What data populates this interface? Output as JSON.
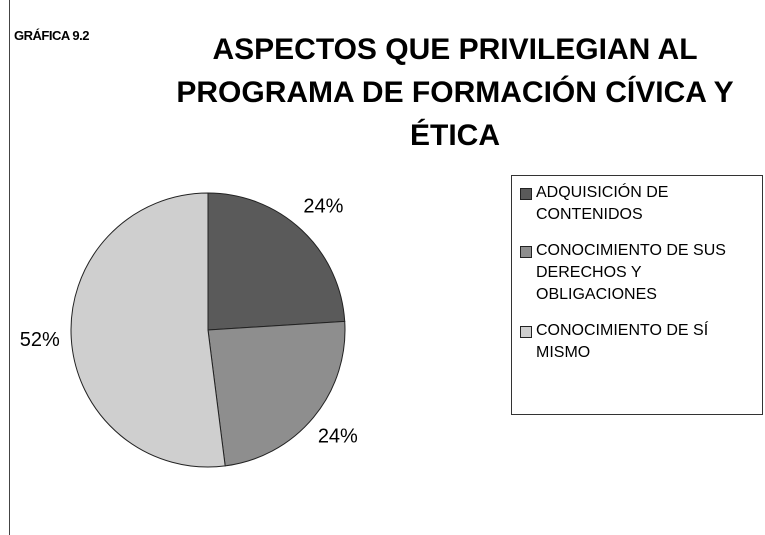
{
  "chart_data": {
    "type": "pie",
    "label": "GRÁFICA 9.2",
    "title": "ASPECTOS QUE PRIVILEGIAN AL PROGRAMA DE FORMACIÓN CÍVICA Y ÉTICA",
    "categories": [
      "ADQUISICIÓN DE CONTENIDOS",
      "CONOCIMIENTO DE SUS DERECHOS Y OBLIGACIONES",
      "CONOCIMIENTO DE SÍ MISMO"
    ],
    "values": [
      24,
      24,
      52
    ],
    "value_labels": [
      "24%",
      "24%",
      "52%"
    ],
    "colors": [
      "#5a5a5a",
      "#8e8e8e",
      "#cfcfcf"
    ],
    "legend": "right"
  }
}
